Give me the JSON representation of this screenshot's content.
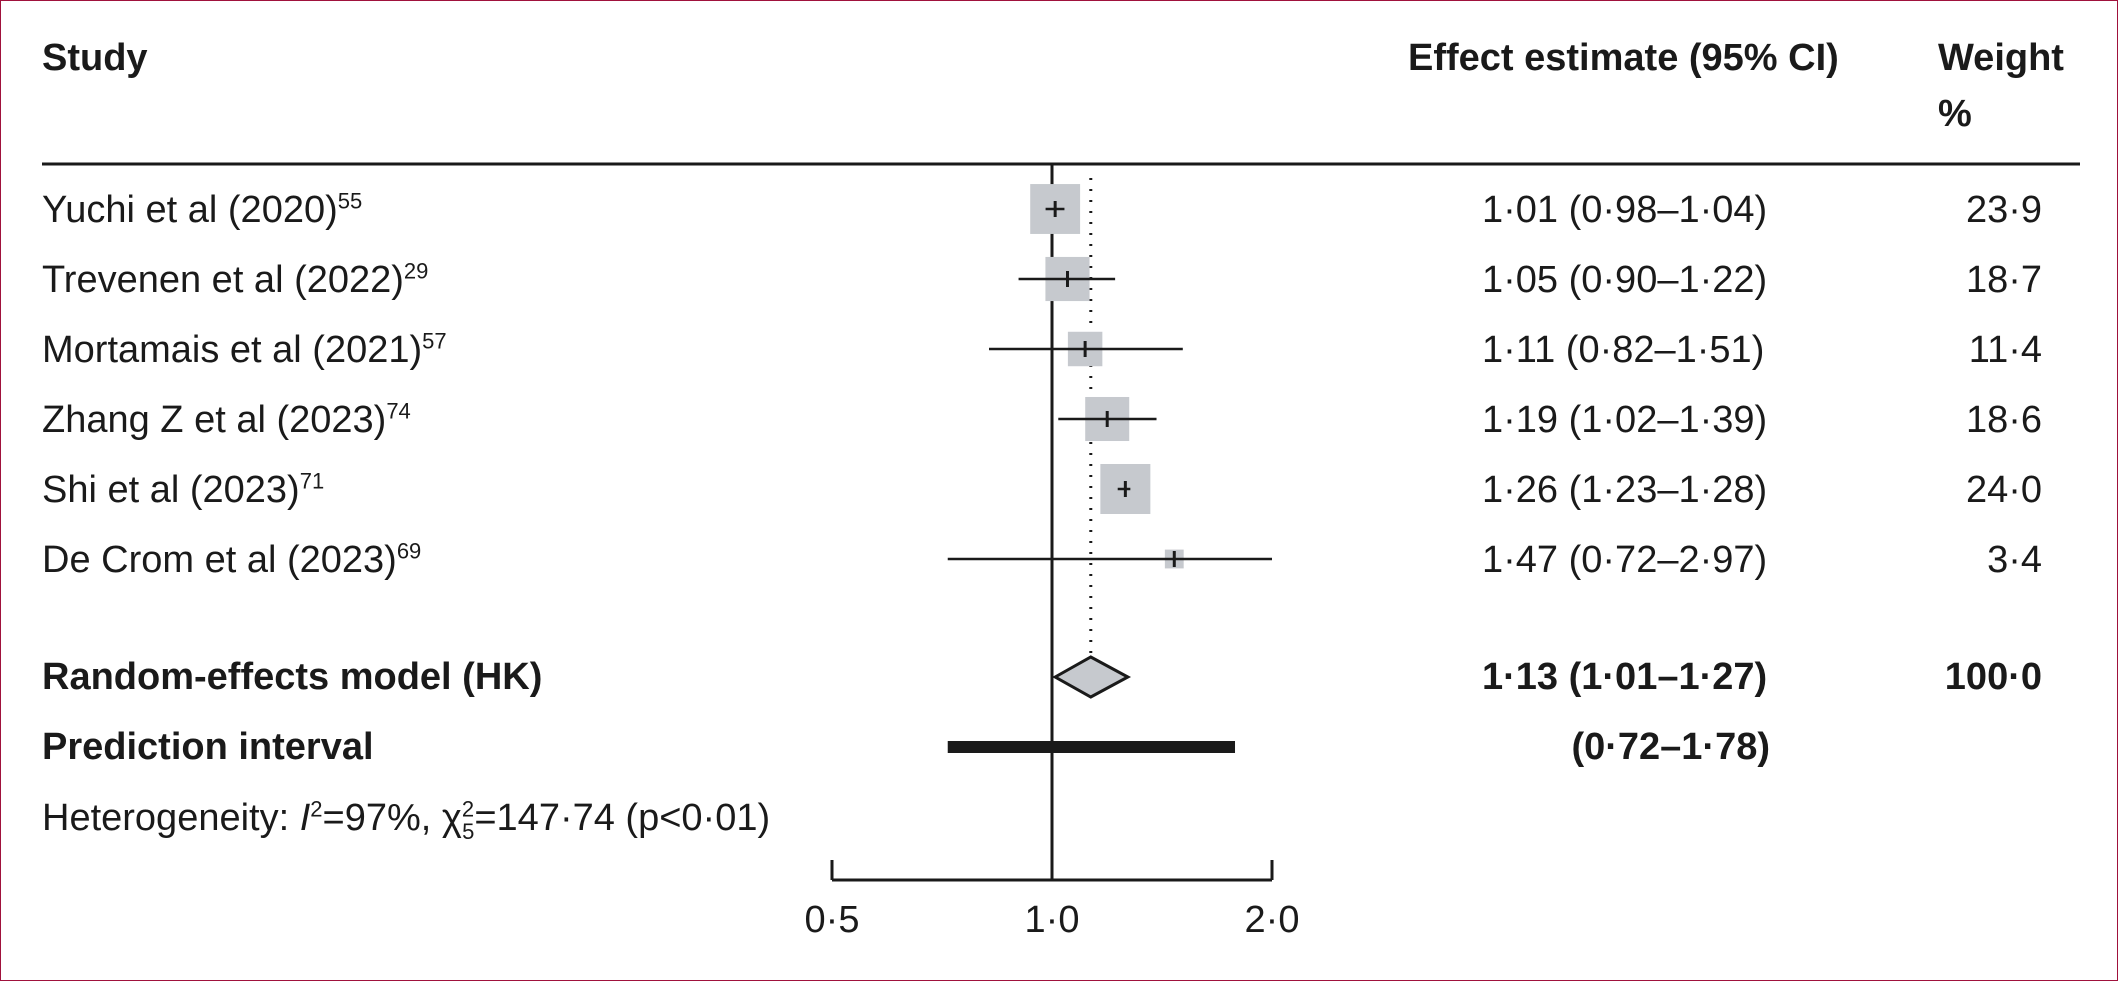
{
  "chart_data": {
    "type": "forest",
    "columns": {
      "study": "Study",
      "effect": "Effect estimate (95% CI)",
      "weight_line1": "Weight",
      "weight_line2": "%"
    },
    "studies": [
      {
        "name": "Yuchi et al (2020)",
        "ref": "55",
        "est": 1.01,
        "lo": 0.98,
        "hi": 1.04,
        "ci_text": "1·01 (0·98–1·04)",
        "weight": 23.9,
        "weight_text": "23·9"
      },
      {
        "name": "Trevenen et al (2022)",
        "ref": "29",
        "est": 1.05,
        "lo": 0.9,
        "hi": 1.22,
        "ci_text": "1·05 (0·90–1·22)",
        "weight": 18.7,
        "weight_text": "18·7"
      },
      {
        "name": "Mortamais et al (2021)",
        "ref": "57",
        "est": 1.11,
        "lo": 0.82,
        "hi": 1.51,
        "ci_text": "1·11 (0·82–1·51)",
        "weight": 11.4,
        "weight_text": "11·4"
      },
      {
        "name": "Zhang Z et al (2023)",
        "ref": "74",
        "est": 1.19,
        "lo": 1.02,
        "hi": 1.39,
        "ci_text": "1·19 (1·02–1·39)",
        "weight": 18.6,
        "weight_text": "18·6"
      },
      {
        "name": "Shi et al (2023)",
        "ref": "71",
        "est": 1.26,
        "lo": 1.23,
        "hi": 1.28,
        "ci_text": "1·26 (1·23–1·28)",
        "weight": 24.0,
        "weight_text": "24·0"
      },
      {
        "name": "De Crom et al (2023)",
        "ref": "69",
        "est": 1.47,
        "lo": 0.72,
        "hi": 2.97,
        "ci_text": "1·47 (0·72–2·97)",
        "weight": 3.4,
        "weight_text": "3·4"
      }
    ],
    "pooled": {
      "label": "Random-effects model (HK)",
      "est": 1.13,
      "lo": 1.01,
      "hi": 1.27,
      "ci_text": "1·13 (1·01–1·27)",
      "weight_text": "100·0"
    },
    "prediction_interval": {
      "label": "Prediction interval",
      "lo": 0.72,
      "hi": 1.78,
      "ci_text": "(0·72–1·78)"
    },
    "heterogeneity": {
      "prefix": "Heterogeneity: ",
      "i_letter": "I",
      "i_sup": "2",
      "i_value": "=97%, ",
      "chi": "χ",
      "chi_sup": "2",
      "chi_sub": "5",
      "chi_value": "=147·74 (p<0·01)"
    },
    "x_axis": {
      "scale": "log",
      "range": [
        0.5,
        2.0
      ],
      "ticks": [
        0.5,
        1.0,
        2.0
      ],
      "tick_labels": [
        "0·5",
        "1·0",
        "2·0"
      ],
      "null_line": 1.0
    },
    "colors": {
      "box": "#c6c9ce",
      "line": "#1a1a1a",
      "diamond": "#c6c9ce",
      "frame": "#a0123c"
    }
  }
}
